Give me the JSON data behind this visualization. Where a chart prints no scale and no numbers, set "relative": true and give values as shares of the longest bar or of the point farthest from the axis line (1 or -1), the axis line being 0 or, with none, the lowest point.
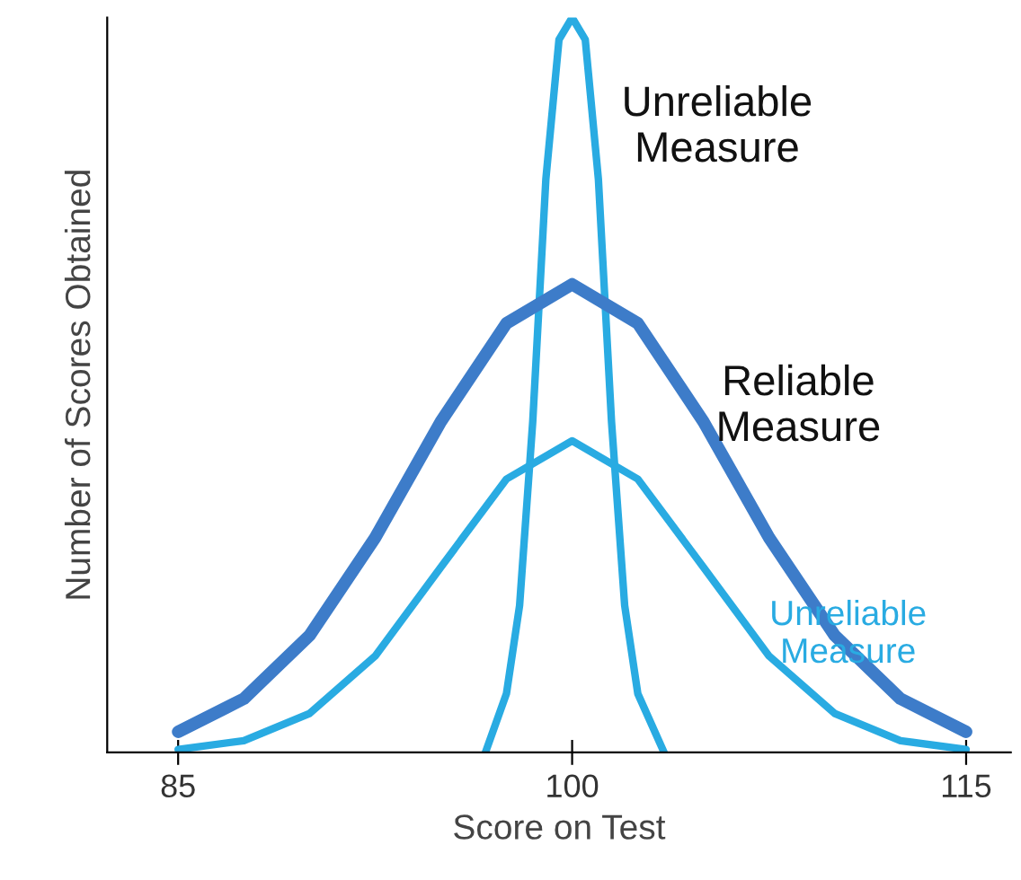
{
  "chart_data": {
    "type": "line",
    "relative": true,
    "xlabel": "Score on Test",
    "ylabel": "Number of Scores Obtained",
    "xlim": [
      82.3,
      116.7
    ],
    "xticks": [
      85,
      100,
      115
    ],
    "grid": false,
    "marker": "none",
    "line_style": "solid",
    "series": [
      {
        "name": "Unreliable\nMeasure",
        "color": "#29abe2",
        "x": [
          96.7,
          97.5,
          98,
          98.5,
          99,
          99.5,
          100,
          100.5,
          101,
          101.5,
          102,
          102.5,
          103.5
        ],
        "values": [
          0,
          0.08,
          0.2,
          0.45,
          0.78,
          0.97,
          1.0,
          0.97,
          0.78,
          0.45,
          0.2,
          0.08,
          0
        ]
      },
      {
        "name": "Reliable\nMeasure",
        "color": "#3d7cc9",
        "x": [
          85,
          87.5,
          90,
          92.5,
          95,
          97.5,
          100,
          102.5,
          105,
          107.5,
          110,
          112.5,
          115
        ],
        "values": [
          0.028,
          0.073,
          0.159,
          0.292,
          0.45,
          0.584,
          0.637,
          0.584,
          0.45,
          0.292,
          0.159,
          0.073,
          0.028
        ]
      },
      {
        "name": "Unreliable\nMeasure",
        "color": "#29abe2",
        "x": [
          85,
          87.5,
          90,
          92.5,
          95,
          97.5,
          100,
          102.5,
          105,
          107.5,
          110,
          112.5,
          115
        ],
        "values": [
          0.004,
          0.016,
          0.053,
          0.131,
          0.252,
          0.372,
          0.424,
          0.372,
          0.252,
          0.131,
          0.053,
          0.016,
          0.004
        ]
      }
    ]
  }
}
